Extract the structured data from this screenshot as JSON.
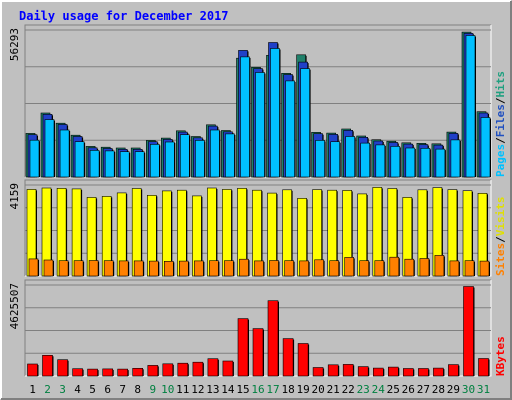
{
  "chart_data": {
    "type": "bar",
    "title": "Daily usage for December 2017",
    "categories": [
      "1",
      "2",
      "3",
      "4",
      "5",
      "6",
      "7",
      "8",
      "9",
      "10",
      "11",
      "12",
      "13",
      "14",
      "15",
      "16",
      "17",
      "18",
      "19",
      "20",
      "21",
      "22",
      "23",
      "24",
      "25",
      "26",
      "27",
      "28",
      "29",
      "30",
      "31"
    ],
    "weekend_days": [
      "2",
      "3",
      "9",
      "10",
      "16",
      "17",
      "23",
      "24",
      "30",
      "31"
    ],
    "panels": [
      {
        "id": "top",
        "ylabel_parts": [
          "Pages",
          "/",
          "Files",
          "/",
          "Hits"
        ],
        "ylabel_colors": [
          "#00c0ff",
          "#000000",
          "#2050c0",
          "#000000",
          "#20a080"
        ],
        "ymax_label": "56293",
        "ymax": 56293,
        "series": [
          {
            "name": "Hits",
            "color": "#20806a",
            "values": [
              16700,
              24500,
              20600,
              16000,
              11700,
              11400,
              11100,
              11100,
              14000,
              14900,
              17700,
              15500,
              20000,
              17800,
              45500,
              42000,
              46600,
              39700,
              46800,
              17100,
              16800,
              18400,
              15700,
              14300,
              13700,
              13100,
              12900,
              12700,
              17200,
              55500,
              25000
            ]
          },
          {
            "name": "Files",
            "color": "#2040c8",
            "values": [
              16200,
              24000,
              20100,
              15500,
              11200,
              10900,
              10600,
              10600,
              13500,
              14400,
              17200,
              15000,
              19500,
              17300,
              48500,
              41500,
              51500,
              39200,
              44000,
              16600,
              16300,
              17900,
              15200,
              13800,
              13200,
              12600,
              12400,
              12200,
              16700,
              55000,
              24500
            ]
          },
          {
            "name": "Pages",
            "color": "#00c0ff",
            "values": [
              14100,
              22000,
              18000,
              13500,
              10200,
              10000,
              9700,
              9700,
              12500,
              13400,
              16200,
              14000,
              18000,
              16500,
              46000,
              40000,
              49200,
              36800,
              41500,
              14000,
              13500,
              15500,
              13000,
              12300,
              11700,
              11100,
              11000,
              10700,
              14200,
              54200,
              22800
            ]
          }
        ]
      },
      {
        "id": "middle",
        "ylabel_parts": [
          "Sites",
          "/",
          "Visits"
        ],
        "ylabel_colors": [
          "#ff8000",
          "#000000",
          "#e0e000"
        ],
        "ymax_label": "4159",
        "ymax": 4159,
        "series": [
          {
            "name": "Visits",
            "color": "#ffff00",
            "values": [
              3960,
              4020,
              4010,
              3980,
              3590,
              3640,
              3800,
              4000,
              3690,
              3890,
              3920,
              3660,
              4020,
              3960,
              4010,
              3920,
              3790,
              3940,
              3550,
              3950,
              3920,
              3910,
              3750,
              4050,
              4000,
              3590,
              3940,
              4040,
              3950,
              3900,
              3780
            ]
          },
          {
            "name": "Sites",
            "color": "#ff8000",
            "values": [
              780,
              730,
              700,
              700,
              710,
              700,
              690,
              690,
              680,
              670,
              680,
              690,
              700,
              700,
              770,
              690,
              710,
              700,
              690,
              740,
              700,
              850,
              700,
              700,
              860,
              770,
              800,
              940,
              690,
              700,
              680
            ]
          }
        ]
      },
      {
        "id": "bottom",
        "ylabel_parts": [
          "KBytes"
        ],
        "ylabel_colors": [
          "#ff0000"
        ],
        "ymax_label": "4625507",
        "ymax": 4625507,
        "series": [
          {
            "name": "KBytes",
            "color": "#ff0000",
            "values": [
              610000,
              1050000,
              830000,
              370000,
              350000,
              360000,
              350000,
              390000,
              540000,
              620000,
              650000,
              700000,
              880000,
              760000,
              2920000,
              2410000,
              3830000,
              1900000,
              1650000,
              430000,
              570000,
              590000,
              480000,
              400000,
              450000,
              380000,
              380000,
              400000,
              580000,
              4550000,
              890000
            ]
          }
        ]
      }
    ]
  },
  "colors": {
    "background": "#c0c0c0",
    "plot_background": "#c0c0c0",
    "title": "#0000ff",
    "weekday_label": "#000000",
    "weekend_label": "#008040"
  }
}
